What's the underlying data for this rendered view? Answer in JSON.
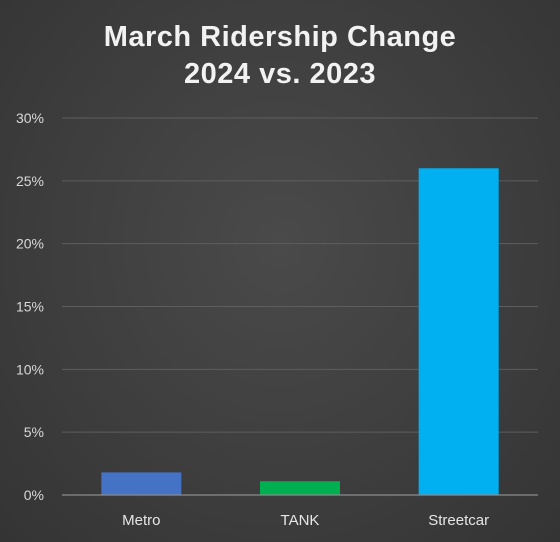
{
  "chart_data": {
    "type": "bar",
    "title_lines": [
      "March Ridership Change",
      "2024 vs. 2023"
    ],
    "categories": [
      "Metro",
      "TANK",
      "Streetcar"
    ],
    "values": [
      1.8,
      1.1,
      26.0
    ],
    "colors": [
      "#4472c4",
      "#00b050",
      "#00b0f0"
    ],
    "ylim": [
      0,
      30
    ],
    "yticks": [
      0,
      5,
      10,
      15,
      20,
      25,
      30
    ],
    "ytick_labels": [
      "0%",
      "5%",
      "10%",
      "15%",
      "20%",
      "25%",
      "30%"
    ],
    "grid": true,
    "legend": false
  }
}
